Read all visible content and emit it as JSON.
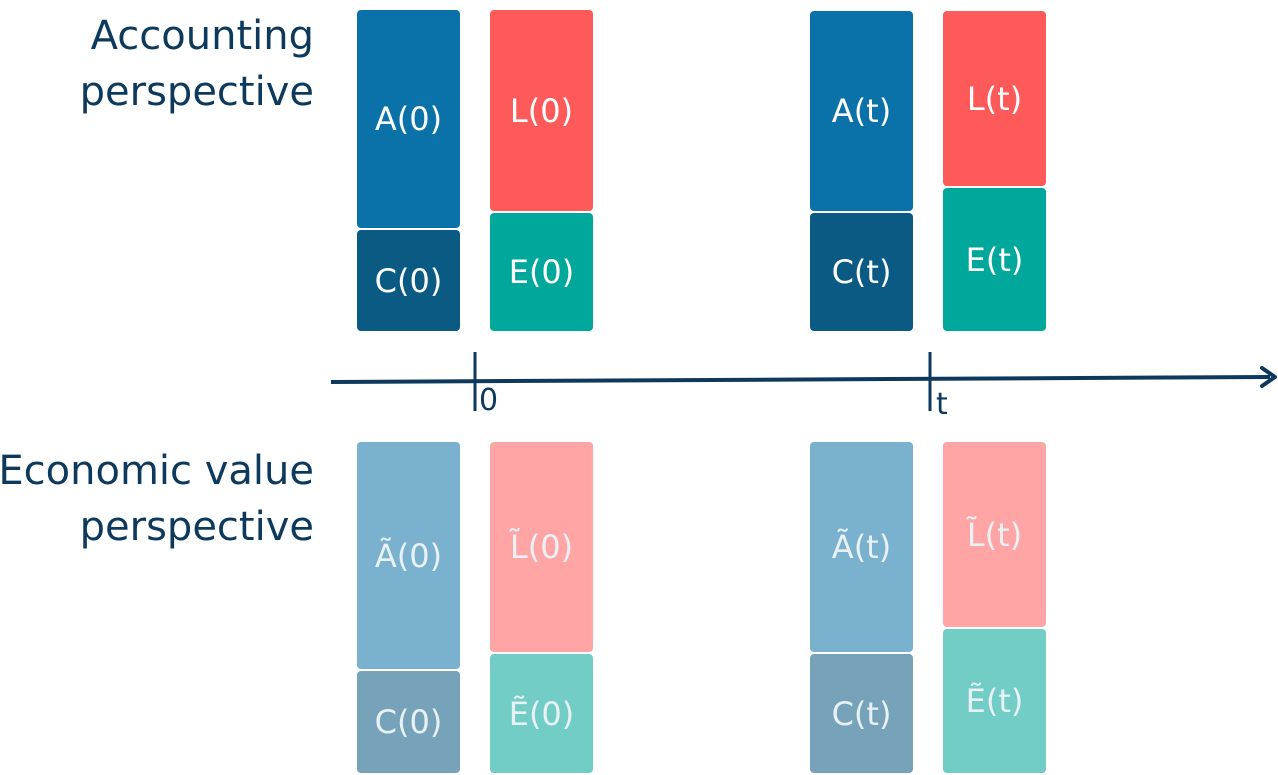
{
  "rows": {
    "accounting": {
      "line1": "Accounting",
      "line2": "perspective"
    },
    "economic": {
      "line1": "Economic value",
      "line2": "perspective"
    }
  },
  "timeline": {
    "ticks": [
      "0",
      "t"
    ]
  },
  "colors": {
    "assets": "#0a72a8",
    "cash": "#0a5a84",
    "liabilities": "#ff5a5a",
    "equity": "#00a89b",
    "assets_soft": "#79b1cf",
    "cash_soft": "#77a3ba",
    "liabilities_soft": "#ffa5a5",
    "equity_soft": "#72cdc7",
    "text_dark": "#0d3a5c"
  },
  "accounting_blocks": {
    "a0": "A(0)",
    "c0": "C(0)",
    "l0": "L(0)",
    "e0": "E(0)",
    "at": "A(t)",
    "ct": "C(t)",
    "lt": "L(t)",
    "et": "E(t)"
  },
  "economic_blocks": {
    "a0": "Ã(0)",
    "c0": "C(0)",
    "l0": "L̃(0)",
    "e0": "Ẽ(0)",
    "at": "Ã(t)",
    "ct": "C(t)",
    "lt": "L̃(t)",
    "et": "Ẽ(t)"
  }
}
